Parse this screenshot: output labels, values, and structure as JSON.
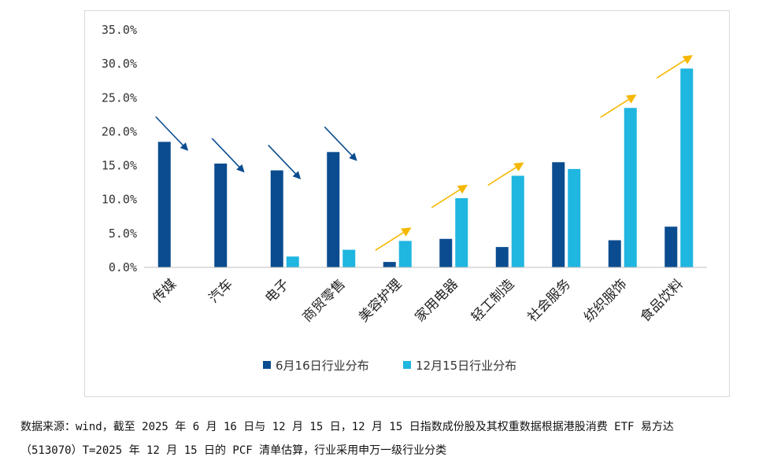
{
  "chart_data": {
    "type": "bar",
    "categories": [
      "传媒",
      "汽车",
      "电子",
      "商贸零售",
      "美容护理",
      "家用电器",
      "轻工制造",
      "社会服务",
      "纺织服饰",
      "食品饮料"
    ],
    "series": [
      {
        "name": "6月16日行业分布",
        "color": "#0a4c8f",
        "values": [
          18.5,
          15.3,
          14.3,
          17.0,
          0.8,
          4.2,
          3.0,
          15.5,
          4.0,
          6.0
        ]
      },
      {
        "name": "12月15日行业分布",
        "color": "#1fb6e0",
        "values": [
          0.0,
          0.0,
          1.6,
          2.6,
          3.9,
          10.2,
          13.5,
          14.5,
          23.5,
          29.3
        ]
      }
    ],
    "trend": [
      "down",
      "down",
      "down",
      "down",
      "up",
      "up",
      "up",
      "none",
      "up",
      "up"
    ],
    "trend_colors": {
      "down": "#0a4c8f",
      "up": "#f5b800"
    },
    "yticks": [
      "0.0%",
      "5.0%",
      "10.0%",
      "15.0%",
      "20.0%",
      "25.0%",
      "30.0%",
      "35.0%"
    ],
    "ylim": [
      0,
      35
    ],
    "title": "",
    "xlabel": "",
    "ylabel": "",
    "legend_position": "bottom"
  },
  "source": {
    "line1": "数据来源：wind，截至 2025 年 6 月 16 日与 12 月 15 日，12 月 15 日指数成份股及其权重数据根据港股消费 ETF 易方达",
    "line2": "（513070）T=2025 年 12 月 15 日的 PCF 清单估算，行业采用申万一级行业分类"
  }
}
